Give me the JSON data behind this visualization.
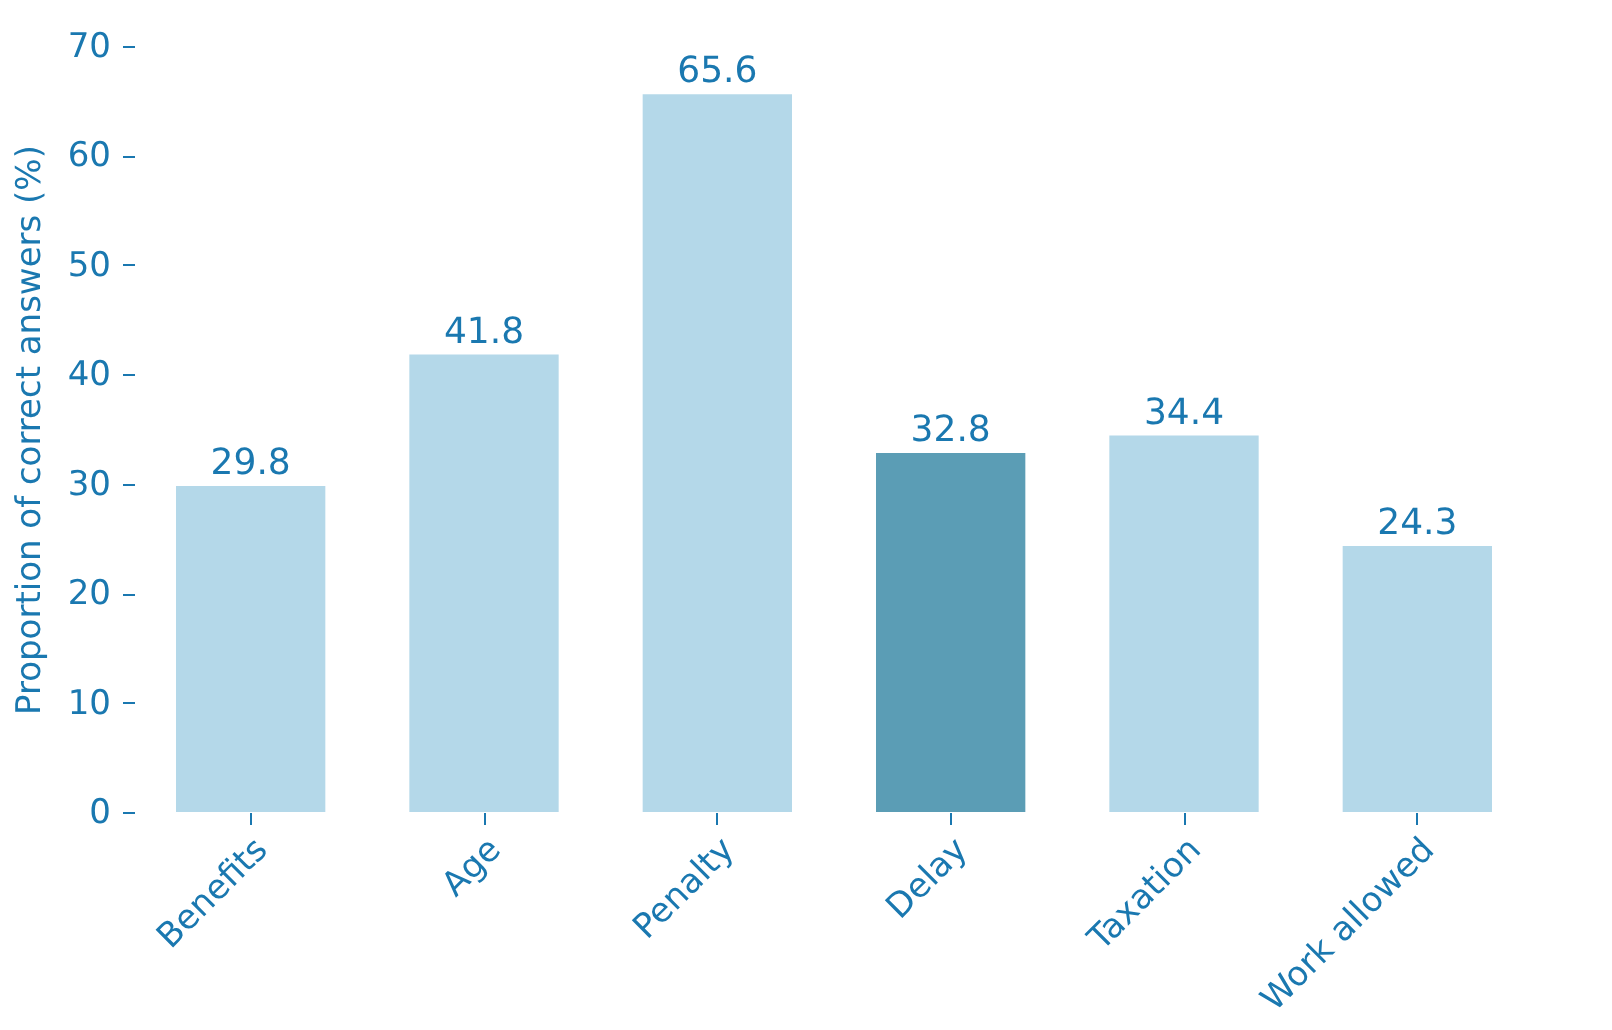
{
  "chart_data": {
    "type": "bar",
    "ylabel": "Proportion of correct answers (%)",
    "categories": [
      "Benefits",
      "Age",
      "Penalty",
      "Delay",
      "Taxation",
      "Work allowed"
    ],
    "values": [
      29.8,
      41.8,
      65.6,
      32.8,
      34.4,
      24.3
    ],
    "colors": [
      "#b4d8e9",
      "#b4d8e9",
      "#b4d8e9",
      "#5b9db5",
      "#b4d8e9",
      "#b4d8e9"
    ],
    "ylim": [
      0,
      70
    ],
    "yticks": [
      0,
      10,
      20,
      30,
      40,
      50,
      60,
      70
    ],
    "data_labels": true,
    "grid": false
  }
}
